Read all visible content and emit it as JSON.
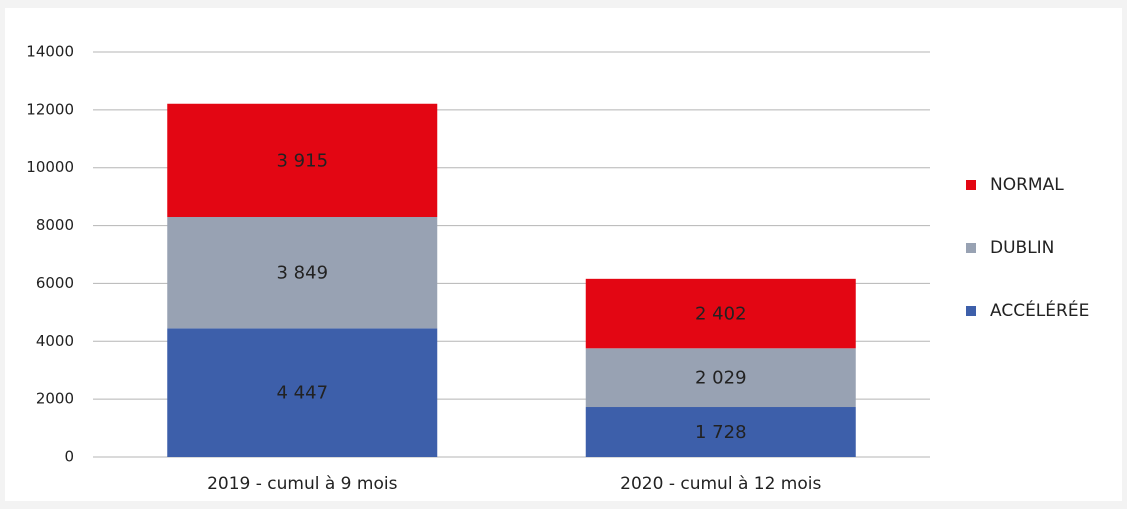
{
  "chart_data": {
    "type": "stacked_bar",
    "categories": [
      "2019 - cumul à 9 mois",
      "2020 - cumul à 12 mois"
    ],
    "series": [
      {
        "name": "ACCÉLÉRÉE",
        "color": "#3d5faa",
        "values": [
          4447,
          1728
        ],
        "value_labels": [
          "4 447",
          "1 728"
        ]
      },
      {
        "name": "DUBLIN",
        "color": "#98a2b3",
        "values": [
          3849,
          2029
        ],
        "value_labels": [
          "3 849",
          "2 029"
        ]
      },
      {
        "name": "NORMAL",
        "color": "#e30613",
        "values": [
          3915,
          2402
        ],
        "value_labels": [
          "3 915",
          "2 402"
        ]
      }
    ],
    "ylim": [
      0,
      14000
    ],
    "yticks": [
      0,
      2000,
      4000,
      6000,
      8000,
      10000,
      12000,
      14000
    ],
    "grid": true,
    "legend": "right"
  }
}
